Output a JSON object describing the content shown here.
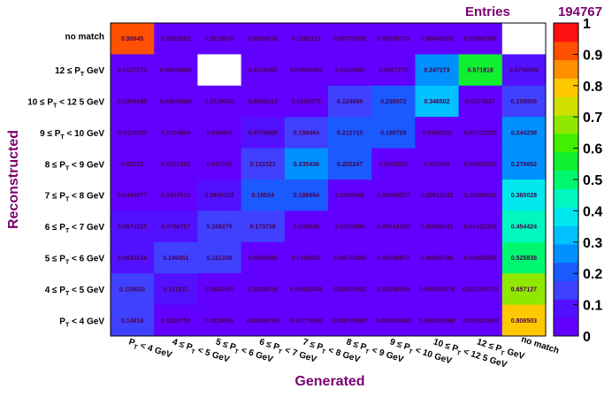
{
  "stats": {
    "label": "Entries",
    "value": "194767"
  },
  "chart_data": {
    "type": "heatmap",
    "xlabel": "Generated",
    "ylabel": "Reconstructed",
    "x_categories": [
      "P_T < 4 GeV",
      "4 ≤ P_T < 5 GeV",
      "5 ≤ P_T < 6 GeV",
      "6 ≤ P_T < 7 GeV",
      "7 ≤ P_T < 8 GeV",
      "8 ≤ P_T < 9 GeV",
      "9 ≤ P_T < 10 GeV",
      "10 ≤ P_T < 12.5 GeV",
      "12 ≤ P_T GeV",
      "no match"
    ],
    "y_categories": [
      "no match",
      "12 ≤ P_T GeV",
      "10 ≤ P_T < 12.5 GeV",
      "9 ≤ P_T < 10 GeV",
      "8 ≤ P_T < 9 GeV",
      "7 ≤ P_T < 8 GeV",
      "6 ≤ P_T < 7 GeV",
      "5 ≤ P_T < 6 GeV",
      "4 ≤ P_T < 5 GeV",
      "P_T < 4 GeV"
    ],
    "x_tick_labels": [
      {
        "pre": "",
        "sub": "T",
        "post": " < 4 GeV"
      },
      {
        "pre": "4 ≤ P",
        "sub": "T",
        "post": " < 5 GeV"
      },
      {
        "pre": "5 ≤ P",
        "sub": "T",
        "post": " < 6 GeV"
      },
      {
        "pre": "6 ≤ P",
        "sub": "T",
        "post": " < 7 GeV"
      },
      {
        "pre": "7 ≤ P",
        "sub": "T",
        "post": " < 8 GeV"
      },
      {
        "pre": "8 ≤ P",
        "sub": "T",
        "post": " < 9 GeV"
      },
      {
        "pre": "9 ≤ P",
        "sub": "T",
        "post": " < 10 GeV"
      },
      {
        "pre": "10 ≤ P",
        "sub": "T",
        "post": " < 12 5 GeV"
      },
      {
        "pre": "12 ≤ P",
        "sub": "T",
        "post": " GeV"
      },
      {
        "pre": "",
        "sub": "",
        "post": "no match"
      }
    ],
    "y_tick_labels": [
      {
        "pre": "",
        "sub": "",
        "post": "no match"
      },
      {
        "pre": "12 ≤ P",
        "sub": "T",
        "post": " GeV"
      },
      {
        "pre": "10 ≤ P",
        "sub": "T",
        "post": " < 12 5 GeV"
      },
      {
        "pre": "9 ≤ P",
        "sub": "T",
        "post": " < 10 GeV"
      },
      {
        "pre": "8 ≤ P",
        "sub": "T",
        "post": " < 9 GeV"
      },
      {
        "pre": "7 ≤ P",
        "sub": "T",
        "post": " < 8 GeV"
      },
      {
        "pre": "6 ≤ P",
        "sub": "T",
        "post": " < 7 GeV"
      },
      {
        "pre": "5 ≤ P",
        "sub": "T",
        "post": " < 6 GeV"
      },
      {
        "pre": "4 ≤ P",
        "sub": "T",
        "post": " < 5 GeV"
      },
      {
        "pre": "P",
        "sub": "T",
        "post": " < 4 GeV"
      }
    ],
    "x_first_tick_prefix": "P",
    "values": [
      [
        0.90045,
        0.0263252,
        0.0213976,
        0.0154916,
        0.0102113,
        0.00776502,
        0.00558731,
        0.00642803,
        0.00643387,
        null
      ],
      [
        0.0127273,
        0.00363636,
        null,
        0.0118182,
        0.00636364,
        0.0145455,
        0.0527273,
        0.247273,
        0.571818,
        0.0790909
      ],
      [
        0.0209188,
        0.00835826,
        0.0139438,
        0.0185213,
        0.0501975,
        0.124099,
        0.230072,
        0.346502,
        0.0274227,
        0.158959
      ],
      [
        0.0119205,
        0.0174834,
        0.029404,
        0.0778808,
        0.150464,
        0.212715,
        0.190728,
        0.0580132,
        0.00715232,
        0.244238
      ],
      [
        0.02822,
        0.0221262,
        0.047191,
        0.121521,
        0.235436,
        0.202247,
        0.0382023,
        0.021089,
        0.00501297,
        0.278652
      ],
      [
        0.0445877,
        0.0437619,
        0.0640102,
        0.19534,
        0.196864,
        0.0385442,
        0.00908527,
        0.00913242,
        0.00362611,
        0.365028
      ],
      [
        0.0674315,
        0.0768727,
        0.168275,
        0.173736,
        0.034945,
        0.0106386,
        0.00744295,
        0.00342041,
        0.00121352,
        0.454424
      ],
      [
        0.0642516,
        0.149451,
        0.161339,
        0.0390895,
        0.0169202,
        0.00748285,
        0.00326677,
        0.00284796,
        0.00050259,
        0.525838
      ],
      [
        0.139032,
        0.111231,
        0.0542497,
        0.0228015,
        0.00881488,
        0.00509531,
        0.00188526,
        0.000458578,
        0.000305718,
        0.657127
      ],
      [
        0.14919,
        0.0226758,
        0.0119556,
        0.00440763,
        0.00179903,
        0.000780587,
        0.000319825,
        0.000925988,
        0.000911999,
        0.808503
      ]
    ],
    "value_labels": [
      [
        "0.90045",
        "0.0263252",
        "0.0213976",
        "0.0154916",
        "0.0102113",
        "0.00776502",
        "0.00558731",
        "0.00642803",
        "0.00643387",
        ""
      ],
      [
        "0.0127273",
        "0.00363636",
        "",
        "0.0118182",
        "0.00636364",
        "0.0145455",
        "0.0527273",
        "0.247273",
        "0.571818",
        "0.0790909"
      ],
      [
        "0.0209188",
        "0.00835826",
        "0.0139438",
        "0.0185213",
        "0.0501975",
        "0.124099",
        "0.230072",
        "0.346502",
        "0.0274227",
        "0.158959"
      ],
      [
        "0.0119205",
        "0.0174834",
        "0.029404",
        "0.0778808",
        "0.150464",
        "0.212715",
        "0.190728",
        "0.0580132",
        "0.00715232",
        "0.244238"
      ],
      [
        "0.02822",
        "0.0221262",
        "0.047191",
        "0.121521",
        "0.235436",
        "0.202247",
        "0.0382023",
        "0.021089",
        "0.00501297",
        "0.278652"
      ],
      [
        "0.0445877",
        "0.0437619",
        "0.0640102",
        "0.19534",
        "0.196864",
        "0.0385442",
        "0.00908527",
        "0.00913242",
        "0.00362611",
        "0.365028"
      ],
      [
        "0.0674315",
        "0.0768727",
        "0.168275",
        "0.173736",
        "0.034945",
        "0.0106386",
        "0.00744295",
        "0.00342041",
        "0.00121352",
        "0.454424"
      ],
      [
        "0.0642516",
        "0.149451",
        "0.161339",
        "0.0390895",
        "0.0169202",
        "0.00748285",
        "0.00326677",
        "0.00284796",
        "0.00050259",
        "0.525838"
      ],
      [
        "0.139032",
        "0.111231",
        "0.0542497",
        "0.0228015",
        "0.00881488",
        "0.00509531",
        "0.00188526",
        "0.000458578",
        "0.000305718",
        "0.657127"
      ],
      [
        "0.14919",
        "0.0226758",
        "0.0119556",
        "0.00440763",
        "0.00179903",
        "0.000780587",
        "0.000319825",
        "0.000925988",
        "0.000911999",
        "0.808503"
      ]
    ],
    "zlim": [
      0,
      1
    ],
    "colorbar_ticks": [
      "0",
      "0.1",
      "0.2",
      "0.3",
      "0.4",
      "0.5",
      "0.6",
      "0.7",
      "0.8",
      "0.9",
      "1"
    ],
    "palette": [
      "#6200ff",
      "#5210ff",
      "#4040ff",
      "#1a5aff",
      "#0090ff",
      "#00c0ff",
      "#00e8ee",
      "#00f8c0",
      "#00f870",
      "#10f030",
      "#40f000",
      "#90e800",
      "#d0e000",
      "#ffc800",
      "#ff9000",
      "#ff5000",
      "#ff1010"
    ],
    "empty_color": "#ffffff",
    "text_color": "#4a004a",
    "label_color": "#7a0070"
  }
}
